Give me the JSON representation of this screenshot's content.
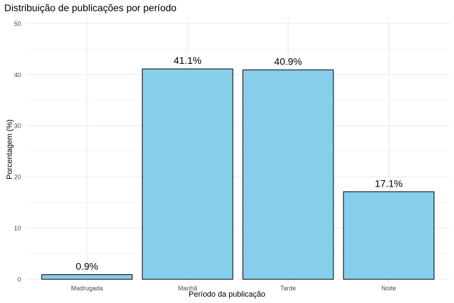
{
  "chart_data": {
    "type": "bar",
    "title": "Distribuição de publicações por período",
    "xlabel": "Período da publicação",
    "ylabel": "Porcentagem (%)",
    "categories": [
      "Madrugada",
      "Manhã",
      "Tarde",
      "Noite"
    ],
    "values": [
      0.9,
      41.1,
      40.9,
      17.1
    ],
    "data_labels": [
      "0.9%",
      "41.1%",
      "40.9%",
      "17.1%"
    ],
    "ylim": [
      0,
      50
    ],
    "y_ticks": [
      0,
      10,
      20,
      30,
      40,
      50
    ],
    "grid": true,
    "legend": "none",
    "bar_color": "#87CEEB",
    "bar_outline_color": "#000000",
    "grid_color": "#EBEBEB"
  }
}
